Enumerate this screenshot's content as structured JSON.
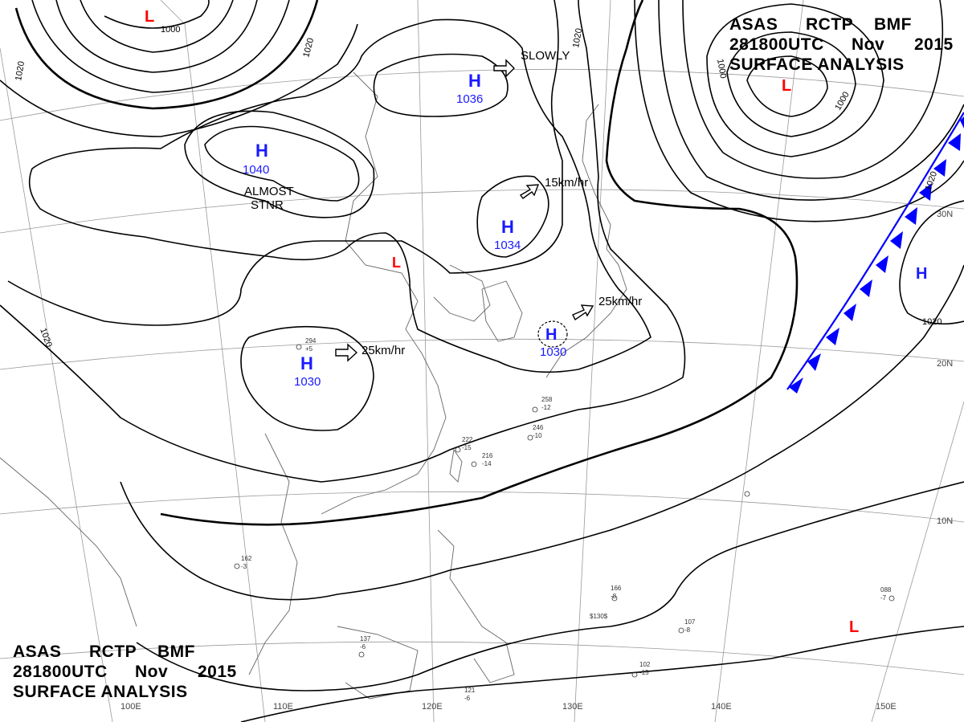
{
  "title": {
    "line1": [
      "ASAS",
      "RCTP",
      "BMF"
    ],
    "line2": [
      "281800UTC",
      "Nov",
      "2015"
    ],
    "line3": "SURFACE ANALYSIS"
  },
  "colors": {
    "isobar": "#000000",
    "high_letter": "#1a1aff",
    "low_letter": "#ff0000",
    "cold_front": "#0000ff",
    "coast": "#555555",
    "grid": "#888888"
  },
  "pressure_centers": [
    {
      "type": "H",
      "value": "1036"
    },
    {
      "type": "H",
      "value": "1040"
    },
    {
      "type": "H",
      "value": "1034"
    },
    {
      "type": "H",
      "value": "1030"
    },
    {
      "type": "H",
      "value": "1030"
    },
    {
      "type": "H",
      "value": ""
    },
    {
      "type": "L",
      "value": ""
    },
    {
      "type": "L",
      "value": ""
    },
    {
      "type": "L",
      "value": ""
    },
    {
      "type": "L",
      "value": ""
    }
  ],
  "motions": [
    "SLOWLY",
    "15km/hr",
    "25km/hr",
    "25km/hr"
  ],
  "notes": [
    "ALMOST",
    "STNR"
  ],
  "isobar_labels": [
    "1000",
    "1020",
    "1020",
    "1020",
    "1020",
    "1000",
    "1020",
    "1020",
    "1000"
  ],
  "longitude_labels": [
    "100E",
    "110E",
    "120E",
    "130E",
    "140E",
    "150E"
  ],
  "latitude_labels": [
    "30N",
    "20N",
    "10N"
  ],
  "station_samples": [
    "294",
    "+5",
    "258",
    "-12",
    "246",
    "-10",
    "222",
    "-15",
    "216",
    "-14",
    "162",
    "-3",
    "137",
    "-6",
    "121",
    "-6",
    "102",
    "-15",
    "107",
    "-8",
    "088",
    "-7",
    "166",
    "-8",
    "$130$"
  ]
}
